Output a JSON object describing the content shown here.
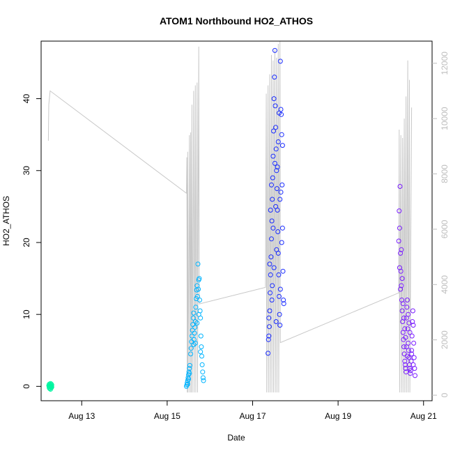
{
  "chart_data": {
    "type": "scatter",
    "title": "ATOM1 Northbound HO2_ATHOS",
    "xlabel": "Date",
    "ylabel": "HO2_ATHOS",
    "x_ticks": [
      "Aug 13",
      "Aug 15",
      "Aug 17",
      "Aug 19",
      "Aug 21"
    ],
    "x_tick_dates": [
      13,
      15,
      17,
      19,
      21
    ],
    "xlim": [
      12.05,
      21.2
    ],
    "ylim": [
      -2,
      48
    ],
    "y_ticks": [
      0,
      10,
      20,
      30,
      40
    ],
    "y2lim": [
      -200,
      12800
    ],
    "y2_ticks": [
      0,
      2000,
      4000,
      6000,
      8000,
      10000,
      12000
    ],
    "colors": {
      "flight1": "#00f5a0",
      "flight2": "#00b4ff",
      "flight3": "#1a2cff",
      "flight4": "#7a1cff",
      "altitude": "#c8c8c8"
    },
    "series": [
      {
        "values": [
          [
            12.23,
            0.1
          ],
          [
            12.24,
            -0.2
          ],
          [
            12.24,
            0.3
          ],
          [
            12.25,
            0.0
          ],
          [
            12.25,
            -0.3
          ],
          [
            12.26,
            0.2
          ],
          [
            12.26,
            -0.1
          ],
          [
            12.27,
            0.4
          ],
          [
            12.27,
            -0.4
          ],
          [
            12.28,
            0.1
          ],
          [
            12.28,
            0.0
          ],
          [
            12.29,
            -0.2
          ],
          [
            12.29,
            0.3
          ],
          [
            12.3,
            -0.1
          ],
          [
            12.3,
            0.2
          ],
          [
            12.24,
            0.0
          ],
          [
            12.27,
            0.1
          ],
          [
            12.29,
            0.0
          ]
        ]
      },
      {
        "values": [
          [
            15.45,
            0.0
          ],
          [
            15.46,
            0.2
          ],
          [
            15.47,
            0.5
          ],
          [
            15.48,
            0.8
          ],
          [
            15.49,
            1.2
          ],
          [
            15.5,
            1.6
          ],
          [
            15.51,
            2.0
          ],
          [
            15.52,
            2.5
          ],
          [
            15.53,
            2.9
          ],
          [
            15.48,
            0.3
          ],
          [
            15.5,
            1.0
          ],
          [
            15.52,
            1.8
          ],
          [
            15.55,
            4.5
          ],
          [
            15.56,
            5.3
          ],
          [
            15.57,
            6.2
          ],
          [
            15.58,
            7.0
          ],
          [
            15.59,
            7.8
          ],
          [
            15.6,
            8.6
          ],
          [
            15.61,
            9.5
          ],
          [
            15.62,
            10.2
          ],
          [
            15.63,
            6.5
          ],
          [
            15.64,
            7.4
          ],
          [
            15.65,
            8.2
          ],
          [
            15.66,
            9.0
          ],
          [
            15.67,
            11.0
          ],
          [
            15.68,
            12.2
          ],
          [
            15.69,
            13.4
          ],
          [
            15.7,
            14.0
          ],
          [
            15.71,
            12.5
          ],
          [
            15.72,
            17.0
          ],
          [
            15.73,
            13.5
          ],
          [
            15.74,
            14.8
          ],
          [
            15.75,
            15.0
          ],
          [
            15.76,
            12.0
          ],
          [
            15.77,
            10.5
          ],
          [
            15.78,
            9.5
          ],
          [
            15.79,
            7.0
          ],
          [
            15.8,
            5.5
          ],
          [
            15.81,
            4.2
          ],
          [
            15.82,
            3.0
          ],
          [
            15.83,
            2.0
          ],
          [
            15.84,
            1.2
          ],
          [
            15.85,
            0.8
          ],
          [
            15.62,
            5.8
          ],
          [
            15.66,
            6.0
          ],
          [
            15.7,
            8.8
          ],
          [
            15.74,
            10.0
          ],
          [
            15.78,
            4.8
          ]
        ]
      },
      {
        "values": [
          [
            17.36,
            4.6
          ],
          [
            17.37,
            6.5
          ],
          [
            17.38,
            7.0
          ],
          [
            17.39,
            8.3
          ],
          [
            17.4,
            10.5
          ],
          [
            17.41,
            13.0
          ],
          [
            17.42,
            15.5
          ],
          [
            17.43,
            18.0
          ],
          [
            17.44,
            20.5
          ],
          [
            17.45,
            23.0
          ],
          [
            17.46,
            26.0
          ],
          [
            17.47,
            29.0
          ],
          [
            17.48,
            32.0
          ],
          [
            17.49,
            35.5
          ],
          [
            17.5,
            40.0
          ],
          [
            17.51,
            43.0
          ],
          [
            17.52,
            46.7
          ],
          [
            17.53,
            39.0
          ],
          [
            17.54,
            36.0
          ],
          [
            17.55,
            33.0
          ],
          [
            17.56,
            30.0
          ],
          [
            17.57,
            27.5
          ],
          [
            17.58,
            24.5
          ],
          [
            17.59,
            21.5
          ],
          [
            17.6,
            18.5
          ],
          [
            17.61,
            15.5
          ],
          [
            17.62,
            12.5
          ],
          [
            17.63,
            10.0
          ],
          [
            17.64,
            8.5
          ],
          [
            17.65,
            45.2
          ],
          [
            17.66,
            38.5
          ],
          [
            17.67,
            37.8
          ],
          [
            17.68,
            35.0
          ],
          [
            17.69,
            28.0
          ],
          [
            17.7,
            22.0
          ],
          [
            17.71,
            16.0
          ],
          [
            17.72,
            12.0
          ],
          [
            17.73,
            11.5
          ],
          [
            17.4,
            17.0
          ],
          [
            17.44,
            28.0
          ],
          [
            17.48,
            22.0
          ],
          [
            17.52,
            31.0
          ],
          [
            17.56,
            19.0
          ],
          [
            17.6,
            34.0
          ],
          [
            17.64,
            26.0
          ],
          [
            17.68,
            20.0
          ],
          [
            17.42,
            24.5
          ],
          [
            17.46,
            14.0
          ],
          [
            17.5,
            16.5
          ],
          [
            17.54,
            25.0
          ],
          [
            17.58,
            30.5
          ],
          [
            17.62,
            38.0
          ],
          [
            17.66,
            27.0
          ],
          [
            17.7,
            33.5
          ],
          [
            17.38,
            9.5
          ],
          [
            17.45,
            12.0
          ],
          [
            17.55,
            9.0
          ],
          [
            17.65,
            13.5
          ]
        ]
      },
      {
        "values": [
          [
            20.42,
            20.2
          ],
          [
            20.43,
            24.4
          ],
          [
            20.44,
            22.0
          ],
          [
            20.45,
            27.8
          ],
          [
            20.46,
            18.5
          ],
          [
            20.47,
            16.0
          ],
          [
            20.48,
            14.0
          ],
          [
            20.49,
            12.0
          ],
          [
            20.5,
            10.5
          ],
          [
            20.51,
            9.0
          ],
          [
            20.52,
            7.5
          ],
          [
            20.53,
            6.5
          ],
          [
            20.54,
            5.5
          ],
          [
            20.55,
            4.5
          ],
          [
            20.56,
            3.5
          ],
          [
            20.57,
            3.0
          ],
          [
            20.58,
            2.5
          ],
          [
            20.59,
            2.0
          ],
          [
            20.6,
            9.5
          ],
          [
            20.61,
            11.0
          ],
          [
            20.62,
            12.0
          ],
          [
            20.63,
            8.0
          ],
          [
            20.64,
            6.0
          ],
          [
            20.65,
            5.0
          ],
          [
            20.66,
            4.0
          ],
          [
            20.67,
            3.0
          ],
          [
            20.68,
            2.5
          ],
          [
            20.69,
            1.8
          ],
          [
            20.7,
            2.2
          ],
          [
            20.71,
            3.5
          ],
          [
            20.72,
            5.0
          ],
          [
            20.73,
            7.0
          ],
          [
            20.74,
            9.0
          ],
          [
            20.75,
            10.5
          ],
          [
            20.76,
            8.5
          ],
          [
            20.77,
            6.0
          ],
          [
            20.78,
            4.0
          ],
          [
            20.79,
            2.5
          ],
          [
            20.8,
            1.5
          ],
          [
            20.44,
            16.5
          ],
          [
            20.48,
            19.0
          ],
          [
            20.52,
            11.5
          ],
          [
            20.56,
            8.0
          ],
          [
            20.6,
            5.5
          ],
          [
            20.64,
            10.0
          ],
          [
            20.68,
            7.5
          ],
          [
            20.72,
            4.5
          ],
          [
            20.76,
            3.0
          ],
          [
            20.46,
            13.5
          ],
          [
            20.5,
            15.0
          ],
          [
            20.54,
            9.5
          ],
          [
            20.58,
            6.8
          ],
          [
            20.62,
            4.2
          ],
          [
            20.66,
            8.8
          ]
        ]
      }
    ],
    "altitude": [
      [
        12.22,
        9200
      ],
      [
        12.23,
        10500
      ],
      [
        12.26,
        11000
      ],
      [
        15.45,
        7300
      ],
      [
        15.46,
        8600
      ],
      [
        15.47,
        100
      ],
      [
        15.48,
        8800
      ],
      [
        15.49,
        100
      ],
      [
        15.52,
        9400
      ],
      [
        15.53,
        100
      ],
      [
        15.55,
        9500
      ],
      [
        15.56,
        100
      ],
      [
        15.58,
        10500
      ],
      [
        15.59,
        100
      ],
      [
        15.62,
        11000
      ],
      [
        15.63,
        100
      ],
      [
        15.66,
        11200
      ],
      [
        15.67,
        100
      ],
      [
        15.7,
        11300
      ],
      [
        15.71,
        100
      ],
      [
        15.74,
        12600
      ],
      [
        15.75,
        3300
      ],
      [
        17.3,
        3900
      ],
      [
        17.32,
        10900
      ],
      [
        17.33,
        100
      ],
      [
        17.36,
        11200
      ],
      [
        17.37,
        100
      ],
      [
        17.4,
        11600
      ],
      [
        17.41,
        100
      ],
      [
        17.44,
        12300
      ],
      [
        17.45,
        100
      ],
      [
        17.48,
        12100
      ],
      [
        17.49,
        100
      ],
      [
        17.52,
        12500
      ],
      [
        17.53,
        100
      ],
      [
        17.56,
        12200
      ],
      [
        17.57,
        100
      ],
      [
        17.6,
        12700
      ],
      [
        17.61,
        100
      ],
      [
        17.64,
        12800
      ],
      [
        17.65,
        1900
      ],
      [
        20.42,
        3700
      ],
      [
        20.43,
        9600
      ],
      [
        20.44,
        100
      ],
      [
        20.47,
        9400
      ],
      [
        20.48,
        100
      ],
      [
        20.51,
        9300
      ],
      [
        20.52,
        100
      ],
      [
        20.55,
        10000
      ],
      [
        20.56,
        100
      ],
      [
        20.59,
        10800
      ],
      [
        20.6,
        100
      ],
      [
        20.63,
        12100
      ],
      [
        20.64,
        100
      ],
      [
        20.67,
        11400
      ],
      [
        20.68,
        100
      ],
      [
        20.72,
        10400
      ]
    ]
  }
}
